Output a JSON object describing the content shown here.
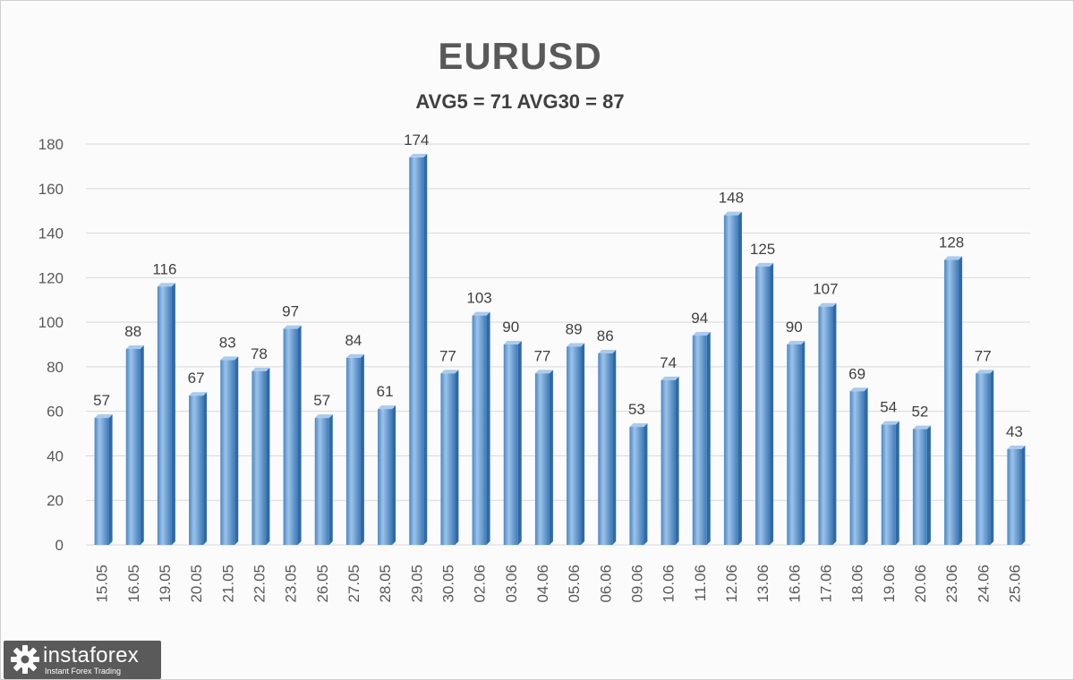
{
  "chart_data": {
    "type": "bar",
    "title": "EURUSD",
    "subtitle": "AVG5 = 71 AVG30 = 87",
    "categories": [
      "15.05",
      "16.05",
      "19.05",
      "20.05",
      "21.05",
      "22.05",
      "23.05",
      "26.05",
      "27.05",
      "28.05",
      "29.05",
      "30.05",
      "02.06",
      "03.06",
      "04.06",
      "05.06",
      "06.06",
      "09.06",
      "10.06",
      "11.06",
      "12.06",
      "13.06",
      "16.06",
      "17.06",
      "18.06",
      "19.06",
      "20.06",
      "23.06",
      "24.06",
      "25.06"
    ],
    "values": [
      57,
      88,
      116,
      67,
      83,
      78,
      97,
      57,
      84,
      61,
      174,
      77,
      103,
      90,
      77,
      89,
      86,
      53,
      74,
      94,
      148,
      125,
      90,
      107,
      69,
      54,
      52,
      128,
      77,
      43
    ],
    "yticks": [
      "0",
      "20",
      "40",
      "60",
      "80",
      "100",
      "120",
      "140",
      "160",
      "180"
    ],
    "ylim": [
      0,
      180
    ],
    "grid": true,
    "legend": "none",
    "bar_color": "#5b9bd5",
    "grid_color": "#d9d9d9"
  },
  "logo": {
    "name": "instaforex",
    "tagline": "Instant Forex Trading"
  }
}
